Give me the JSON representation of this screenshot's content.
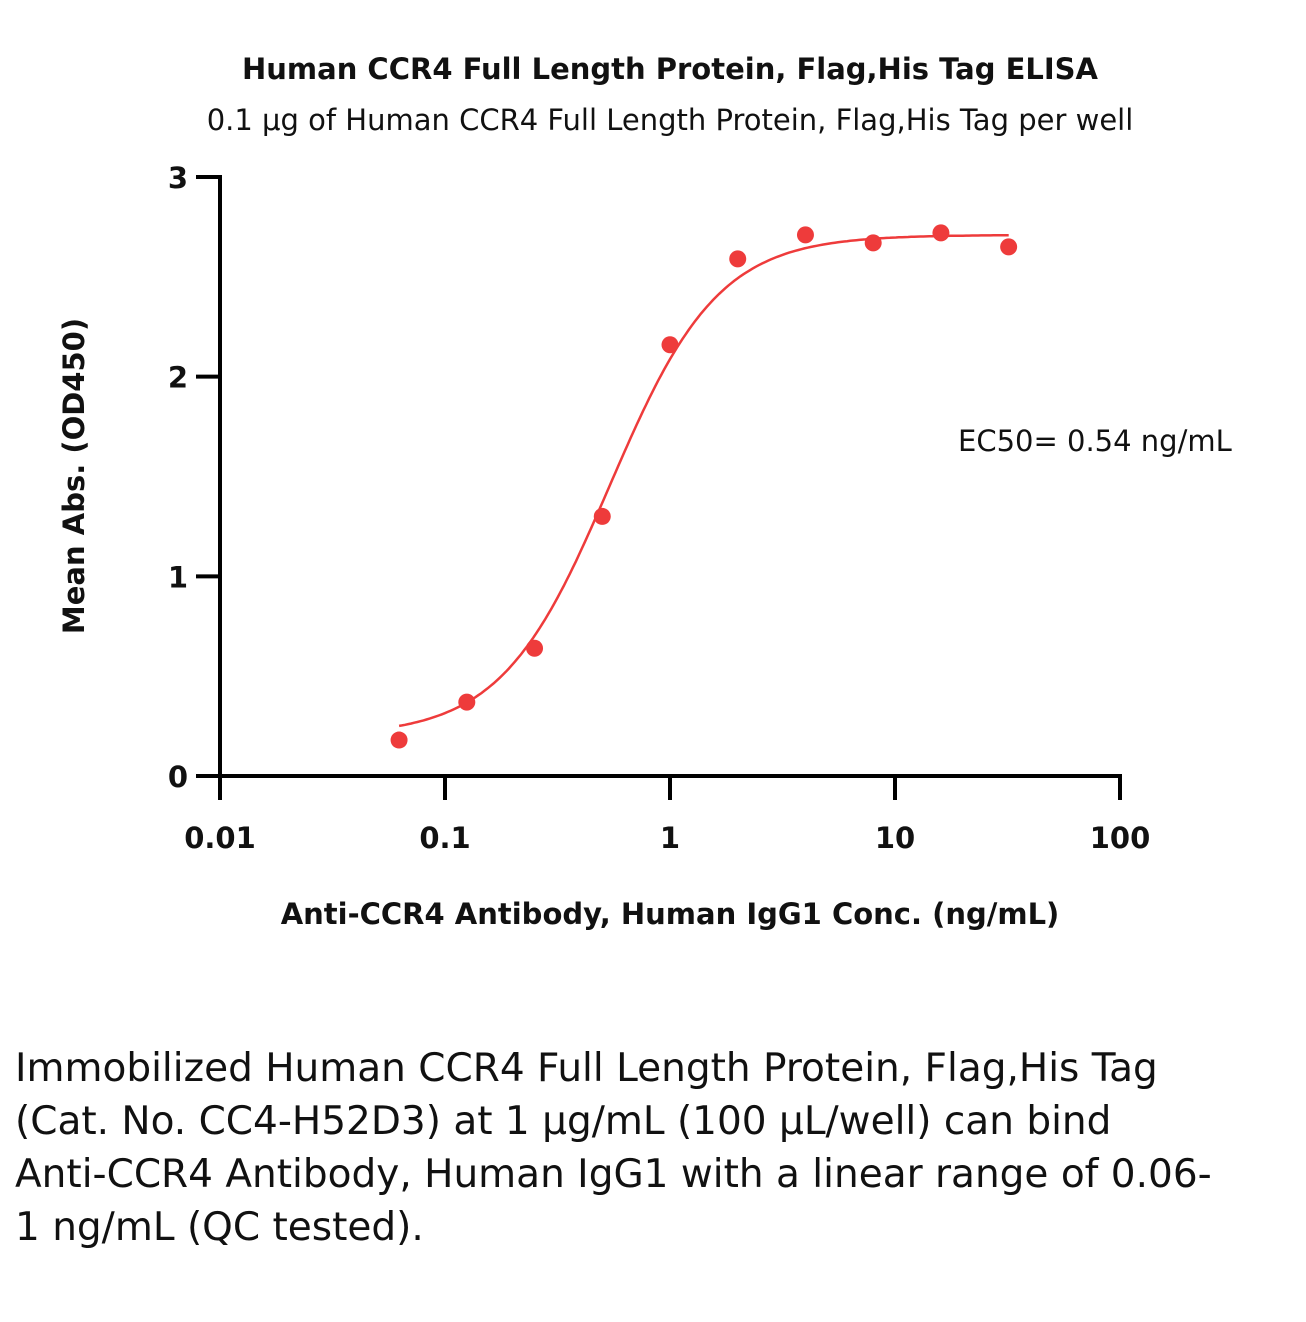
{
  "chart_data": {
    "type": "scatter",
    "title": "Human CCR4 Full Length Protein, Flag,His Tag ELISA",
    "subtitle": "0.1 μg of Human CCR4 Full Length Protein, Flag,His Tag per well",
    "xlabel": "Anti-CCR4 Antibody, Human IgG1 Conc. (ng/mL)",
    "ylabel": "Mean Abs. (OD450)",
    "xscale": "log",
    "xlim": [
      0.01,
      100
    ],
    "ylim": [
      0,
      3
    ],
    "xticks": [
      "0.01",
      "0.1",
      "1",
      "10",
      "100"
    ],
    "xtick_values": [
      0.01,
      0.1,
      1,
      10,
      100
    ],
    "yticks": [
      "0",
      "1",
      "2",
      "3"
    ],
    "ytick_values": [
      0,
      1,
      2,
      3
    ],
    "grid": false,
    "color": "#ee3b3b",
    "x": [
      0.0625,
      0.125,
      0.25,
      0.5,
      1,
      2,
      4,
      8,
      16,
      32
    ],
    "y": [
      0.18,
      0.37,
      0.64,
      1.3,
      2.16,
      2.59,
      2.71,
      2.67,
      2.72,
      2.65
    ],
    "fit": {
      "model": "4PL",
      "bottom": 0.2,
      "top": 2.71,
      "ec50": 0.54,
      "hill": 1.8
    },
    "annotation": "EC50= 0.54 ng/mL"
  },
  "caption": "Immobilized Human CCR4 Full Length Protein, Flag,His Tag (Cat. No. CC4-H52D3) at 1 μg/mL (100 μL/well) can bind Anti-CCR4 Antibody, Human IgG1 with a linear range of 0.06-1 ng/mL (QC tested)."
}
